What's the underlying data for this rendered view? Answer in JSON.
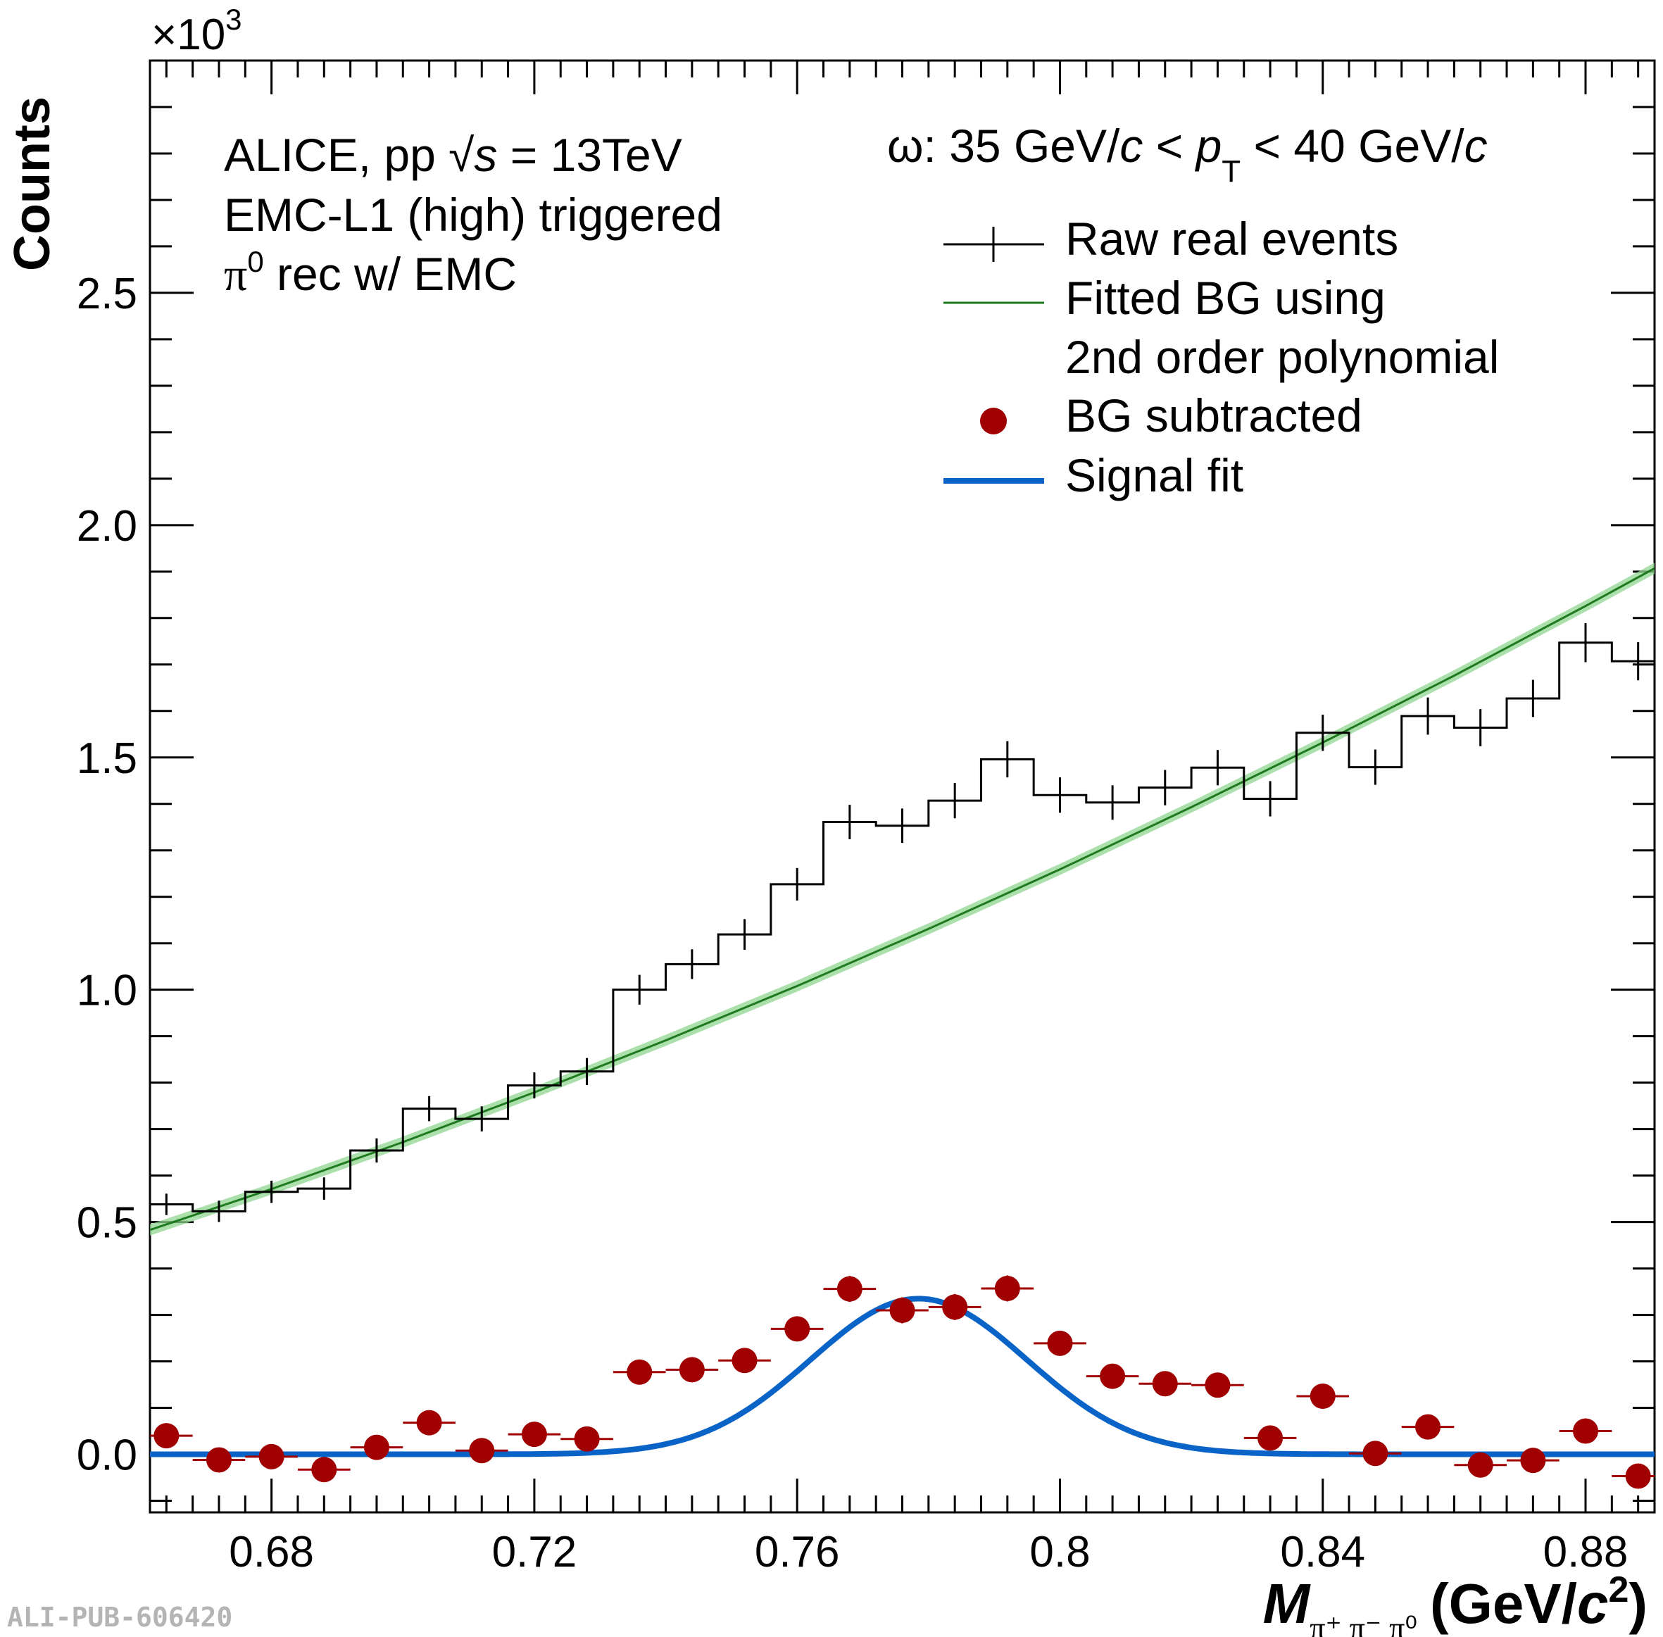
{
  "chart_data": {
    "type": "line",
    "exponent_label": "×10",
    "exponent_power": "3",
    "ylabel": "Counts",
    "xlabel": {
      "symbol": "M",
      "subscript": "π⁺ π⁻ π⁰",
      "unit_prefix": "(GeV/",
      "unit_c": "c",
      "unit_power": "2",
      "unit_suffix": ")"
    },
    "xlim": [
      0.6615,
      0.8905
    ],
    "ylim": [
      -0.125,
      3.0
    ],
    "xticks": [
      {
        "value": 0.68,
        "label": "0.68"
      },
      {
        "value": 0.72,
        "label": "0.72"
      },
      {
        "value": 0.76,
        "label": "0.76"
      },
      {
        "value": 0.8,
        "label": "0.8"
      },
      {
        "value": 0.84,
        "label": "0.84"
      },
      {
        "value": 0.88,
        "label": "0.88"
      }
    ],
    "yticks": [
      {
        "value": 0.0,
        "label": "0.0"
      },
      {
        "value": 0.5,
        "label": "0.5"
      },
      {
        "value": 1.0,
        "label": "1.0"
      },
      {
        "value": 1.5,
        "label": "1.5"
      },
      {
        "value": 2.0,
        "label": "2.0"
      },
      {
        "value": 2.5,
        "label": "2.5"
      }
    ],
    "annotations": {
      "experiment": "ALICE, pp ",
      "sqrt_s_var": "s",
      "energy": " = 13TeV",
      "trigger": "EMC-L1 (high) triggered",
      "pi0_symbol": "π",
      "pi0_sup": "0",
      "pi0_text": " rec w/ EMC",
      "pt_particle": "ω: 35 GeV/",
      "pt_c1": "c",
      "pt_lt1": " < ",
      "pt_p": "p",
      "pt_sub": "T",
      "pt_rest": " < 40 GeV/",
      "pt_c2": "c"
    },
    "legend": {
      "position": "top-right",
      "entries": [
        "Raw real events",
        "Fitted BG using",
        "2nd order polynomial",
        "BG subtracted",
        "Signal fit"
      ]
    },
    "bin_width": 0.008,
    "raw_series": {
      "name": "Raw real events",
      "color": "#000000",
      "x": [
        0.664,
        0.672,
        0.68,
        0.688,
        0.696,
        0.704,
        0.712,
        0.72,
        0.728,
        0.736,
        0.744,
        0.752,
        0.76,
        0.768,
        0.776,
        0.784,
        0.792,
        0.8,
        0.808,
        0.816,
        0.824,
        0.832,
        0.84,
        0.848,
        0.856,
        0.864,
        0.872,
        0.88,
        0.888
      ],
      "y": [
        0.538,
        0.523,
        0.565,
        0.572,
        0.654,
        0.744,
        0.722,
        0.794,
        0.824,
        1.0,
        1.055,
        1.119,
        1.227,
        1.361,
        1.353,
        1.407,
        1.496,
        1.419,
        1.403,
        1.435,
        1.478,
        1.411,
        1.553,
        1.479,
        1.589,
        1.564,
        1.627,
        1.747,
        1.707
      ],
      "yerr": [
        0.023,
        0.023,
        0.024,
        0.024,
        0.026,
        0.027,
        0.027,
        0.028,
        0.029,
        0.032,
        0.032,
        0.033,
        0.035,
        0.037,
        0.037,
        0.038,
        0.039,
        0.038,
        0.037,
        0.038,
        0.038,
        0.038,
        0.039,
        0.038,
        0.04,
        0.04,
        0.04,
        0.042,
        0.041
      ]
    },
    "bg_series": {
      "name": "Fitted BG using 2nd order polynomial",
      "color": "#1e7a1e",
      "band_color": "#8fd48f",
      "x": [
        0.6615,
        0.68,
        0.7,
        0.72,
        0.74,
        0.76,
        0.78,
        0.8,
        0.82,
        0.84,
        0.86,
        0.88,
        0.8905
      ],
      "y": [
        0.483,
        0.571,
        0.672,
        0.779,
        0.891,
        1.008,
        1.131,
        1.259,
        1.393,
        1.532,
        1.676,
        1.826,
        1.907
      ]
    },
    "sub_series": {
      "name": "BG subtracted",
      "color": "#a00000",
      "x": [
        0.664,
        0.672,
        0.68,
        0.688,
        0.696,
        0.704,
        0.712,
        0.72,
        0.728,
        0.736,
        0.744,
        0.752,
        0.76,
        0.768,
        0.776,
        0.784,
        0.792,
        0.8,
        0.808,
        0.816,
        0.824,
        0.832,
        0.84,
        0.848,
        0.856,
        0.864,
        0.872,
        0.88,
        0.888
      ],
      "y": [
        0.04,
        -0.012,
        -0.005,
        -0.033,
        0.015,
        0.068,
        0.008,
        0.043,
        0.033,
        0.177,
        0.182,
        0.202,
        0.27,
        0.356,
        0.31,
        0.317,
        0.357,
        0.239,
        0.168,
        0.152,
        0.149,
        0.035,
        0.125,
        0.002,
        0.059,
        -0.023,
        -0.013,
        0.05,
        -0.047
      ],
      "yerr": [
        0.02,
        0.02,
        0.02,
        0.02,
        0.02,
        0.022,
        0.022,
        0.022,
        0.022,
        0.025,
        0.025,
        0.025,
        0.025,
        0.028,
        0.028,
        0.028,
        0.028,
        0.025,
        0.025,
        0.025,
        0.025,
        0.022,
        0.022,
        0.022,
        0.022,
        0.02,
        0.02,
        0.02,
        0.02
      ]
    },
    "signal_fit": {
      "name": "Signal fit",
      "color": "#0a64c8",
      "amplitude": 0.335,
      "mean": 0.7785,
      "sigma": 0.0165
    },
    "watermark": "ALI-PUB-606420"
  }
}
